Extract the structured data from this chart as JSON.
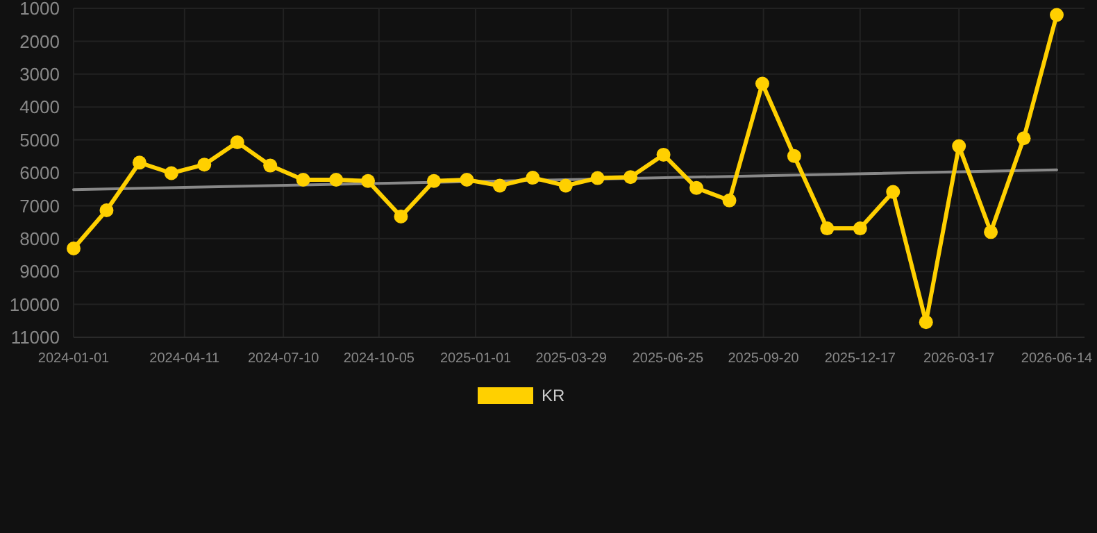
{
  "chart_data": {
    "type": "line",
    "x": [
      "2024-01-01",
      "2024-01-31",
      "2024-03-01",
      "2024-03-30",
      "2024-04-29",
      "2024-05-29",
      "2024-06-28",
      "2024-07-28",
      "2024-08-27",
      "2024-09-25",
      "2024-10-25",
      "2024-11-24",
      "2024-12-24",
      "2025-01-23",
      "2025-02-22",
      "2025-03-24",
      "2025-04-22",
      "2025-05-22",
      "2025-06-21",
      "2025-07-21",
      "2025-08-20",
      "2025-09-19",
      "2025-10-18",
      "2025-11-17",
      "2025-12-17",
      "2026-01-16",
      "2026-02-15",
      "2026-03-17",
      "2026-04-15",
      "2026-05-15",
      "2026-06-14"
    ],
    "series": [
      {
        "name": "KR",
        "color": "#ffd000",
        "marker": "circle",
        "values": [
          8300,
          7140,
          5690,
          6010,
          5750,
          5070,
          5780,
          6210,
          6210,
          6250,
          7330,
          6250,
          6210,
          6390,
          6150,
          6390,
          6160,
          6130,
          5450,
          6460,
          6840,
          3290,
          5490,
          7690,
          7690,
          6580,
          10540,
          5190,
          7800,
          4950,
          1200
        ]
      },
      {
        "type": "line",
        "color": "#888888",
        "marker": "none",
        "x": [
          "2024-01-01",
          "2026-06-14"
        ],
        "values": [
          6510,
          5910
        ]
      }
    ],
    "xlim": [
      "2024-01-01",
      "2026-06-14"
    ],
    "ylim": [
      11000,
      1000
    ],
    "xticks": [
      "2024-01-01",
      "2024-04-11",
      "2024-07-10",
      "2024-10-05",
      "2025-01-01",
      "2025-03-29",
      "2025-06-25",
      "2025-09-20",
      "2025-12-17",
      "2026-03-17",
      "2026-06-14"
    ],
    "yticks": [
      1000,
      2000,
      3000,
      4000,
      5000,
      6000,
      7000,
      8000,
      9000,
      10000,
      11000
    ],
    "grid": true,
    "legend": "bottom"
  }
}
